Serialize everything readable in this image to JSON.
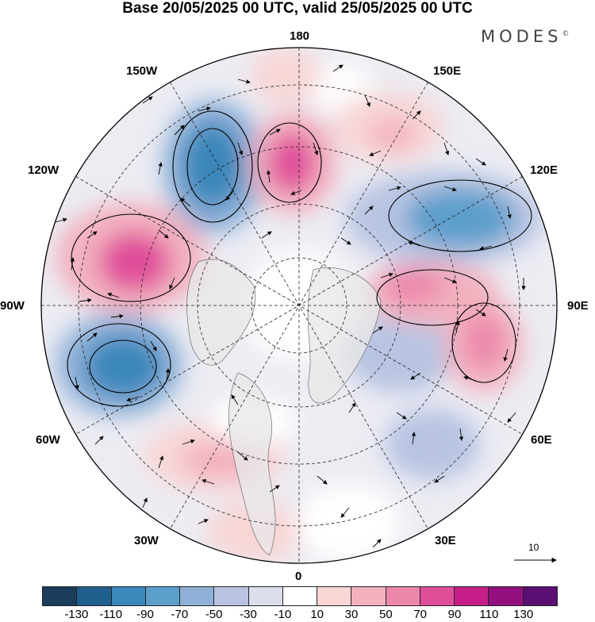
{
  "title": "Base 20/05/2025 00 UTC, valid 25/05/2025 00 UTC",
  "brand": "MODES",
  "brand_mark": "©",
  "longitude_labels": {
    "lon_180": "180",
    "lon_150e": "150E",
    "lon_120e": "120E",
    "lon_90e": "90E",
    "lon_60e": "60E",
    "lon_30e": "30E",
    "lon_0": "0",
    "lon_30w": "30W",
    "lon_60w": "60W",
    "lon_90w": "90W",
    "lon_120w": "120W",
    "lon_150w": "150W"
  },
  "reference_vector": {
    "value": "10",
    "icon": "arrow-right-icon"
  },
  "colorbar": {
    "colors": [
      "#1b3d5c",
      "#1f5f8e",
      "#3b87bb",
      "#5d9fcc",
      "#8fb1d8",
      "#b8c4e2",
      "#dcdded",
      "#ffffff",
      "#f8d6d6",
      "#f3b1bf",
      "#ec86aa",
      "#e04e9a",
      "#c71f8a",
      "#92107e",
      "#5a0f72"
    ],
    "tick_labels": [
      "-130",
      "-110",
      "-90",
      "-70",
      "-50",
      "-30",
      "-10",
      "10",
      "30",
      "50",
      "70",
      "90",
      "110",
      "130"
    ]
  }
}
